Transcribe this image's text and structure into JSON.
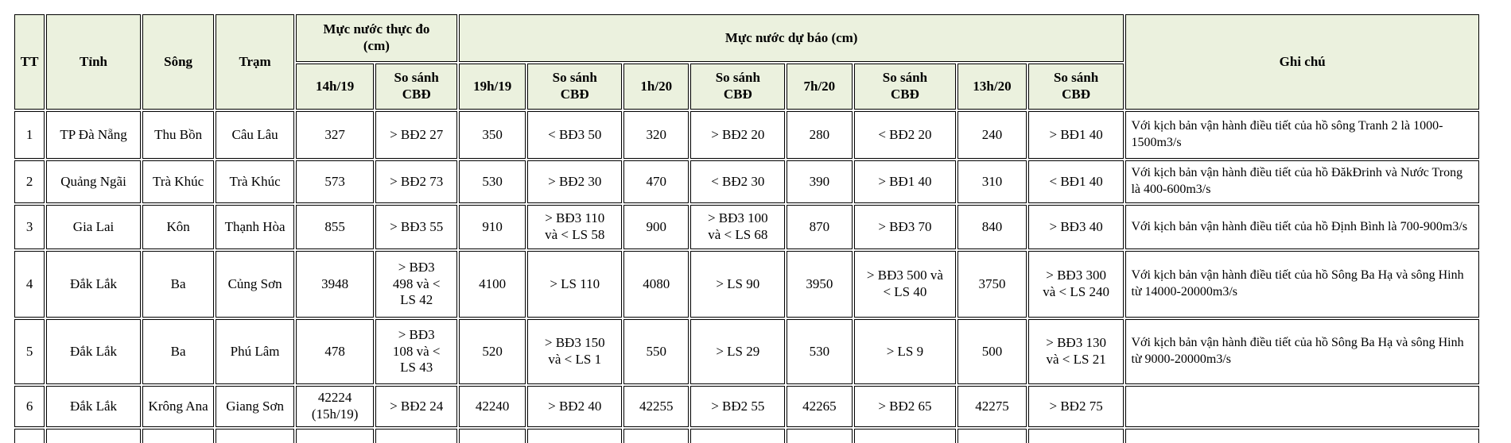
{
  "table": {
    "col_keys": [
      "tt",
      "tinh",
      "song",
      "tram",
      "14h19",
      "so-sanh-cbd-1",
      "19h19",
      "so-sanh-cbd-2",
      "1h20",
      "so-sanh-cbd-3",
      "7h20",
      "so-sanh-cbd-4",
      "13h20",
      "so-sanh-cbd-5",
      "ghi-chu"
    ],
    "header": {
      "tt": "TT",
      "tinh": "Tỉnh",
      "song": "Sông",
      "tram": "Trạm",
      "thuc_do": "Mực nước thực đo\n(cm)",
      "du_bao": "Mực nước dự báo (cm)",
      "ghi_chu": "Ghi chú",
      "sub_headers": [
        "14h/19",
        "So sánh\nCBĐ",
        "19h/19",
        "So sánh\nCBĐ",
        "1h/20",
        "So sánh\nCBĐ",
        "7h/20",
        "So sánh\nCBĐ",
        "13h/20",
        "So sánh\nCBĐ"
      ]
    },
    "rows": [
      {
        "cells": [
          "1",
          "TP Đà Nẵng",
          "Thu Bồn",
          "Câu Lâu",
          "327",
          "> BĐ2 27",
          "350",
          "< BĐ3 50",
          "320",
          "> BĐ2 20",
          "280",
          "< BĐ2 20",
          "240",
          "> BĐ1 40",
          "Với kịch bản vận hành điều tiết của hồ sông Tranh 2 là 1000-1500m3/s"
        ]
      },
      {
        "cells": [
          "2",
          "Quảng Ngãi",
          "Trà Khúc",
          "Trà Khúc",
          "573",
          "> BĐ2 73",
          "530",
          "> BĐ2 30",
          "470",
          "< BĐ2 30",
          "390",
          "> BĐ1 40",
          "310",
          "< BĐ1 40",
          "Với kịch bản vận hành điều tiết của hồ ĐăkĐrinh và Nước Trong là 400-600m3/s"
        ]
      },
      {
        "cells": [
          "3",
          "Gia Lai",
          "Kôn",
          "Thạnh Hòa",
          "855",
          "> BĐ3 55",
          "910",
          "> BĐ3 110\nvà < LS 58",
          "900",
          "> BĐ3 100\nvà < LS 68",
          "870",
          "> BĐ3 70",
          "840",
          "> BĐ3 40",
          "Với kịch bản vận hành điều tiết của hồ Định Bình là 700-900m3/s"
        ]
      },
      {
        "cells": [
          "4",
          "Đắk Lắk",
          "Ba",
          "Củng Sơn",
          "3948",
          "> BĐ3\n498 và <\nLS 42",
          "4100",
          "> LS 110",
          "4080",
          "> LS 90",
          "3950",
          "> BĐ3 500 và\n< LS 40",
          "3750",
          "> BĐ3 300\nvà < LS 240",
          "Với kịch bản vận hành điều tiết của hồ Sông Ba Hạ và sông Hinh từ 14000-20000m3/s"
        ]
      },
      {
        "cells": [
          "5",
          "Đắk Lắk",
          "Ba",
          "Phú Lâm",
          "478",
          "> BĐ3\n108 và <\nLS 43",
          "520",
          "> BĐ3 150\nvà < LS 1",
          "550",
          "> LS 29",
          "530",
          "> LS 9",
          "500",
          "> BĐ3 130\nvà < LS 21",
          "Với kịch bản vận hành điều tiết của hồ Sông Ba Hạ và sông Hinh từ 9000-20000m3/s"
        ]
      },
      {
        "cells": [
          "6",
          "Đắk Lắk",
          "Krông Ana",
          "Giang Sơn",
          "42224\n(15h/19)",
          "> BĐ2 24",
          "42240",
          "> BĐ2 40",
          "42255",
          "> BĐ2 55",
          "42265",
          "> BĐ2 65",
          "42275",
          "> BĐ2 75",
          ""
        ]
      },
      {
        "cells": [
          "",
          "",
          "",
          "",
          "",
          "",
          "",
          "",
          "",
          "",
          "",
          "",
          "",
          "",
          ""
        ]
      }
    ]
  },
  "colors": {
    "header_bg": "#ebf1de",
    "border": "#000000",
    "text": "#000000"
  }
}
